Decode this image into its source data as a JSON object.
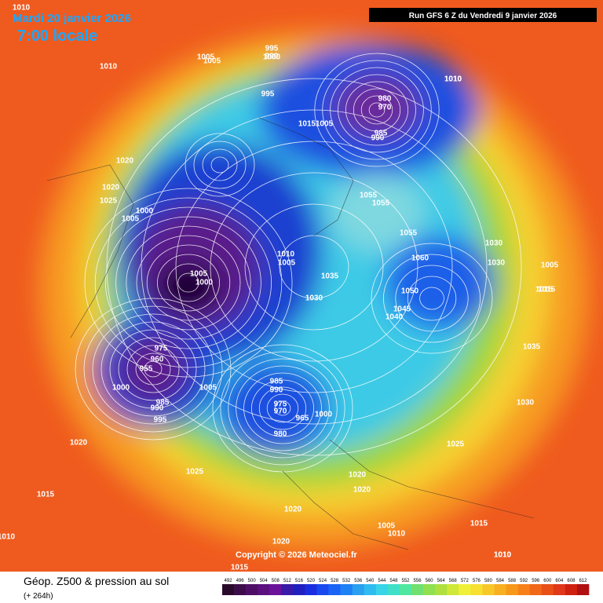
{
  "header": {
    "date": "Mardi 20 janvier 2026",
    "time": "7:00 locale",
    "run": "Run GFS 6 Z du Vendredi 9 janvier 2026"
  },
  "copyright": "Copyright © 2026 Meteociel.fr",
  "footer": {
    "title": "Géop. Z500 & pression au sol",
    "subtitle": "(+ 264h)"
  },
  "colorbar": {
    "ticks": [
      492,
      496,
      500,
      504,
      508,
      512,
      516,
      520,
      524,
      528,
      532,
      536,
      540,
      544,
      548,
      552,
      556,
      560,
      564,
      568,
      572,
      576,
      580,
      584,
      588,
      592,
      596,
      600,
      604,
      608,
      612
    ],
    "colors": [
      "#2a0a2a",
      "#3d0c4a",
      "#4f0e66",
      "#5c1080",
      "#6a129a",
      "#3a1aa8",
      "#2020c0",
      "#1a2ee0",
      "#1848f0",
      "#1a64f5",
      "#1e80f5",
      "#2aa0f0",
      "#30bcf0",
      "#38d4e8",
      "#40e0c8",
      "#50e8a0",
      "#70e070",
      "#90e050",
      "#b0e040",
      "#d0e838",
      "#f0f038",
      "#f8e030",
      "#f8c828",
      "#f8b020",
      "#f89818",
      "#f88018",
      "#f06818",
      "#e85018",
      "#e03818",
      "#d02010",
      "#b01010"
    ]
  },
  "pressure_labels": [
    1010,
    1010,
    1005,
    1000,
    1010,
    1005,
    995,
    990,
    995,
    980,
    970,
    985,
    990,
    1015,
    1005,
    1010,
    1020,
    1020,
    1025,
    1000,
    1005,
    1005,
    1000,
    1010,
    1005,
    1035,
    1030,
    1055,
    1055,
    1055,
    1060,
    1050,
    1045,
    1040,
    1030,
    1030,
    1015,
    1035,
    1030,
    1025,
    1010,
    1015,
    975,
    960,
    955,
    1000,
    985,
    990,
    995,
    1005,
    990,
    985,
    975,
    970,
    965,
    980,
    1000,
    1020,
    1020,
    1025,
    1015,
    1020,
    1020,
    1005,
    1010,
    1015,
    1020,
    1010,
    1010,
    1005,
    1015
  ]
}
